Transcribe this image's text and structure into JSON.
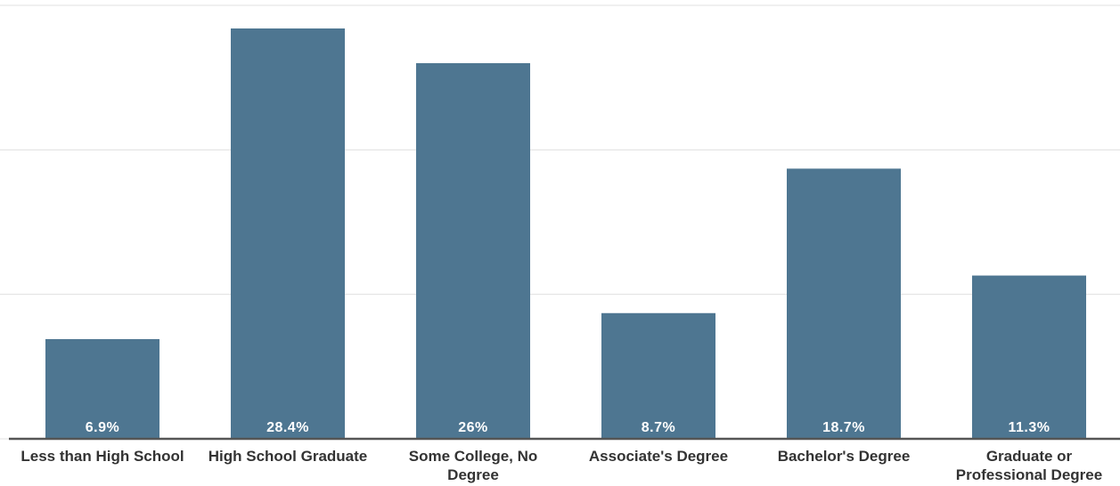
{
  "chart_data": {
    "type": "bar",
    "categories": [
      "Less than High School",
      "High School Graduate",
      "Some College, No Degree",
      "Associate's Degree",
      "Bachelor's Degree",
      "Graduate or Professional Degree"
    ],
    "values": [
      6.9,
      28.4,
      26,
      8.7,
      18.7,
      11.3
    ],
    "value_labels": [
      "6.9%",
      "28.4%",
      "26%",
      "8.7%",
      "18.7%",
      "11.3%"
    ],
    "color": "#4e7691",
    "ylim": [
      0,
      30
    ],
    "yticks": [
      0,
      10,
      20,
      30
    ],
    "grid": true
  }
}
